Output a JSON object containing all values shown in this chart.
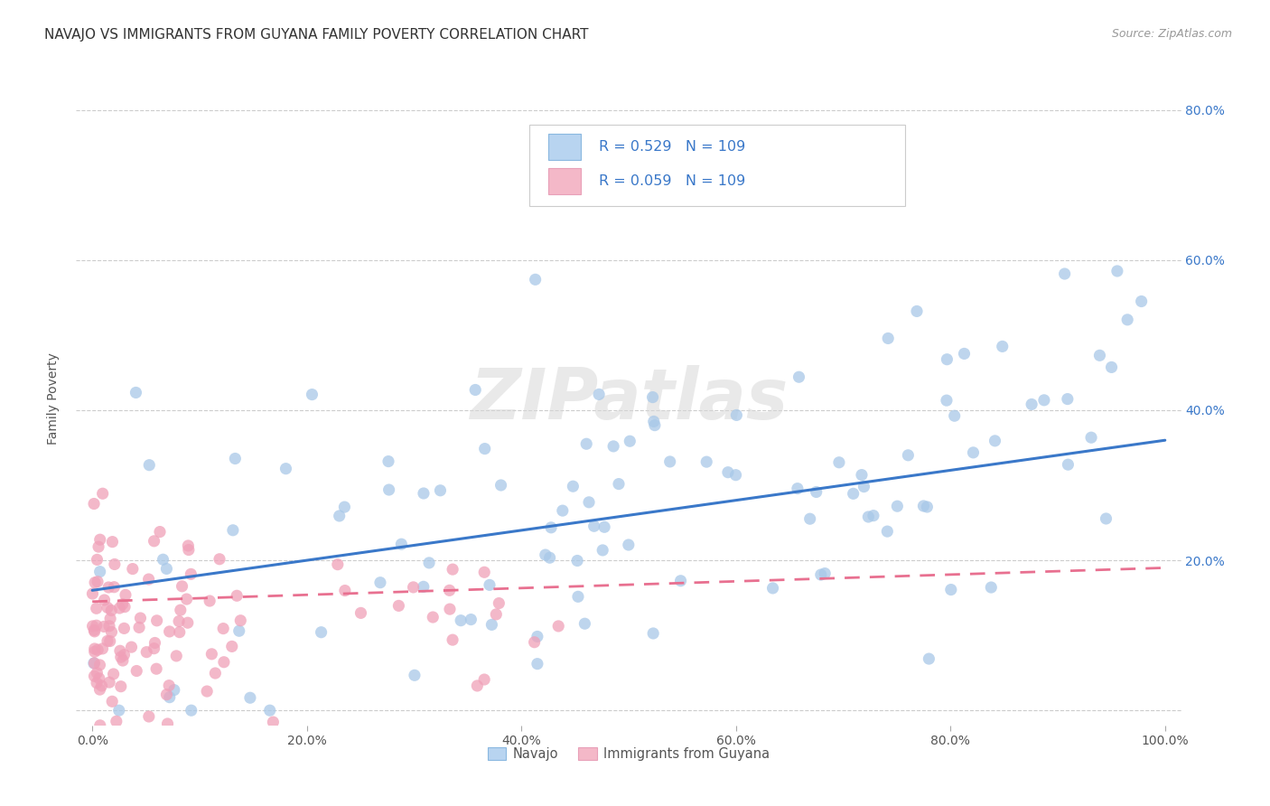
{
  "title": "NAVAJO VS IMMIGRANTS FROM GUYANA FAMILY POVERTY CORRELATION CHART",
  "source": "Source: ZipAtlas.com",
  "ylabel": "Family Poverty",
  "navajo_R": 0.529,
  "guyana_R": 0.059,
  "N": 109,
  "navajo_color": "#a8c8e8",
  "guyana_color": "#f0a0b8",
  "navajo_line_color": "#3a78c9",
  "guyana_line_color": "#e87090",
  "watermark": "ZIPatlas",
  "legend_box_color_navajo": "#b8d4f0",
  "legend_box_color_guyana": "#f4b8c8",
  "title_fontsize": 11,
  "label_fontsize": 10,
  "tick_fontsize": 10,
  "legend_text_color": "#3a78c9",
  "xlim": [
    0.0,
    1.0
  ],
  "ylim": [
    0.0,
    0.85
  ],
  "navajo_intercept": 0.16,
  "navajo_slope": 0.2,
  "guyana_intercept": 0.145,
  "guyana_slope": 0.045
}
